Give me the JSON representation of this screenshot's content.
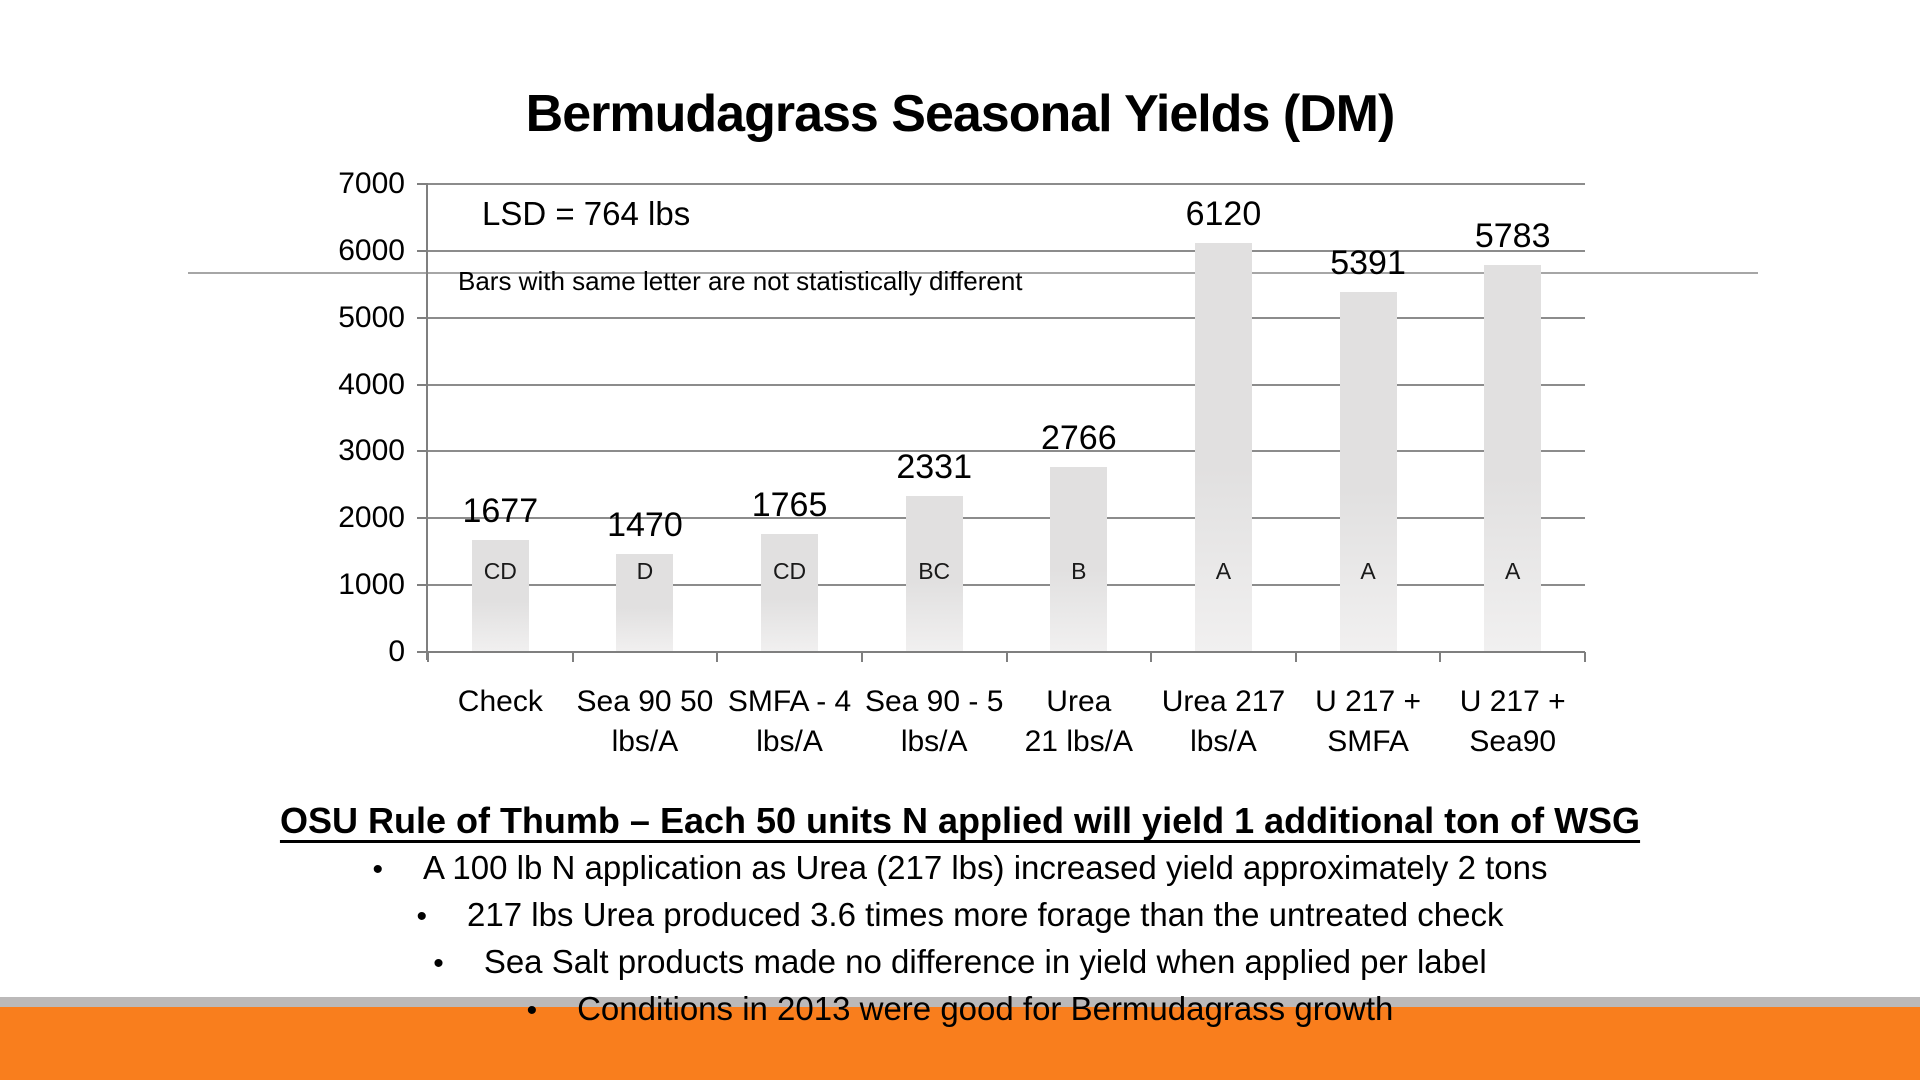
{
  "slide": {
    "title": "Bermudagrass Seasonal Yields (DM)"
  },
  "chart_data": {
    "type": "bar",
    "title": "Bermudagrass Seasonal Yields (DM)",
    "categories": [
      "Check",
      "Sea 90 50\nlbs/A",
      "SMFA - 4\nlbs/A",
      "Sea 90 - 5\nlbs/A",
      "Urea\n21 lbs/A",
      "Urea 217\nlbs/A",
      "U 217 +\nSMFA",
      "U 217 +\nSea90"
    ],
    "values": [
      1677,
      1470,
      1765,
      2331,
      2766,
      6120,
      5391,
      5783
    ],
    "significance_letters": [
      "CD",
      "D",
      "CD",
      "BC",
      "B",
      "A",
      "A",
      "A"
    ],
    "ylim": [
      0,
      7000
    ],
    "yticks": [
      0,
      1000,
      2000,
      3000,
      4000,
      5000,
      6000,
      7000
    ],
    "grid": "horizontal gridlines on",
    "legend": "none",
    "annotations": {
      "lsd": "LSD = 764 lbs",
      "note": "Bars with same letter are not statistically different"
    },
    "colors": {
      "bar_fill_top": "#e1e0e0",
      "bar_fill_bottom": "#f1f0f0",
      "gridline": "#8c8c8c",
      "axis": "#7f7f7f",
      "divider": "#a6a6a6"
    }
  },
  "notes": {
    "heading": "OSU Rule of Thumb – Each 50 units N applied will yield 1 additional ton of WSG",
    "bullets": [
      "A 100 lb N application as Urea (217 lbs) increased yield approximately 2 tons",
      "217 lbs Urea produced 3.6 times more forage than the untreated check",
      "Sea Salt products made no difference in yield when applied per label",
      "Conditions in 2013 were good for Bermudagrass growth"
    ],
    "bullet_glyph": "•"
  },
  "footer": {
    "stripe_color": "#bbb9b9",
    "accent_color": "#f97e1d"
  }
}
